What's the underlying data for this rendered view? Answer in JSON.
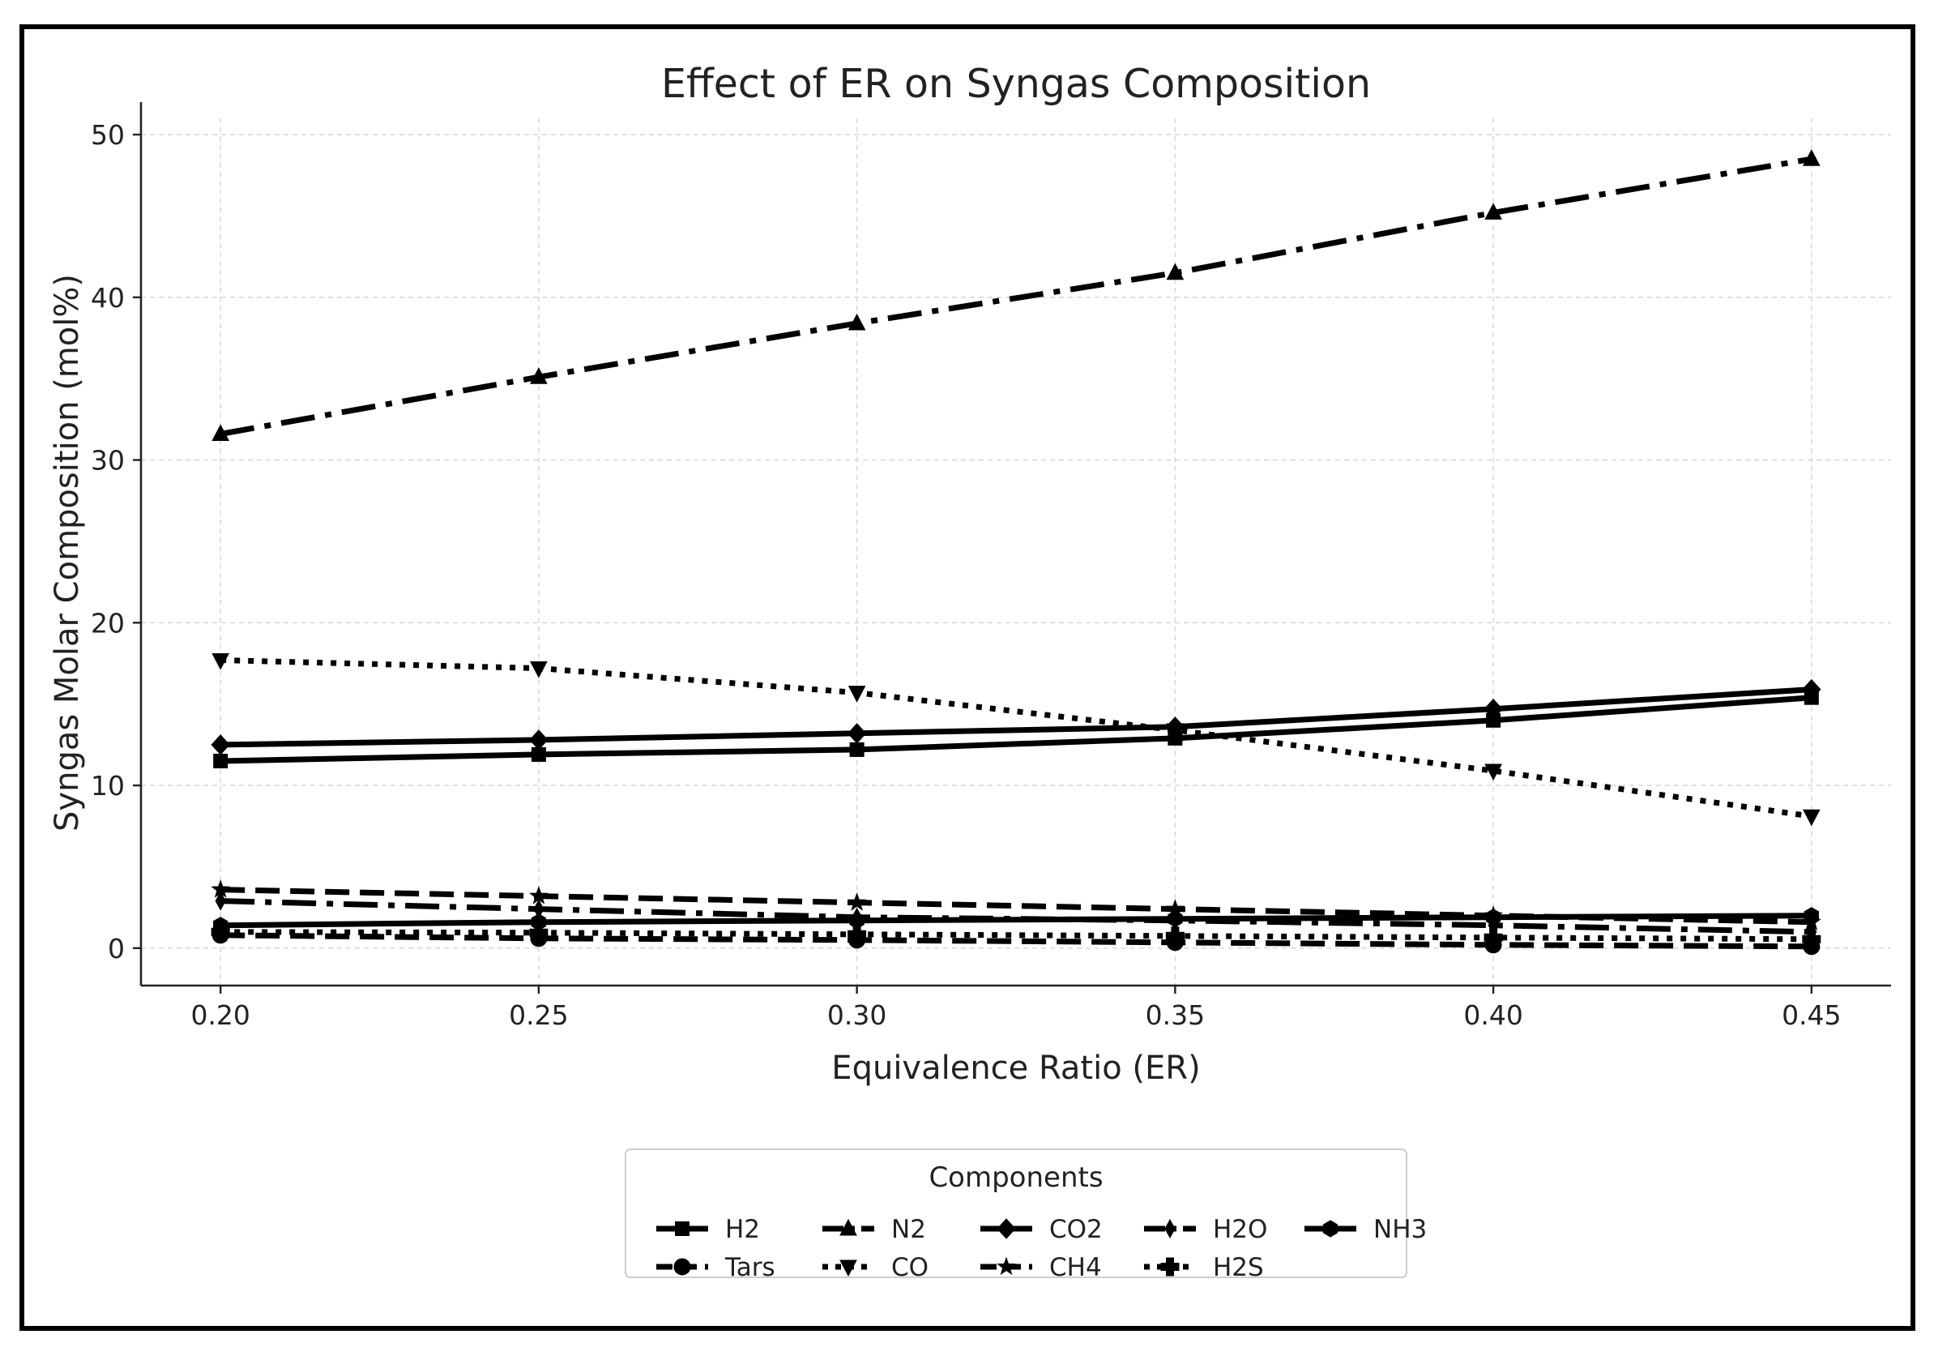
{
  "chart_data": {
    "type": "line",
    "title": "Effect of ER on Syngas Composition",
    "xlabel": "Equivalence Ratio (ER)",
    "ylabel": "Syngas Molar Composition (mol%)",
    "x": [
      0.2,
      0.25,
      0.3,
      0.35,
      0.4,
      0.45
    ],
    "x_tick_labels": [
      "0.20",
      "0.25",
      "0.30",
      "0.35",
      "0.40",
      "0.45"
    ],
    "xlim": [
      0.1875,
      0.4625
    ],
    "y_ticks": [
      0,
      10,
      20,
      30,
      40,
      50
    ],
    "y_tick_labels": [
      "0",
      "10",
      "20",
      "30",
      "40",
      "50"
    ],
    "ylim": [
      -2.3,
      51
    ],
    "grid": true,
    "legend": {
      "title": "Components",
      "position": "bottom-center",
      "columns": 5
    },
    "series": [
      {
        "name": "H2",
        "marker": "square",
        "linestyle": "solid",
        "values": [
          11.5,
          11.9,
          12.2,
          12.9,
          14.0,
          15.4
        ]
      },
      {
        "name": "N2",
        "marker": "triangle-up",
        "linestyle": "dashdot",
        "values": [
          31.6,
          35.1,
          38.4,
          41.5,
          45.2,
          48.5
        ]
      },
      {
        "name": "CO2",
        "marker": "diamond",
        "linestyle": "solid",
        "values": [
          12.5,
          12.8,
          13.2,
          13.6,
          14.7,
          15.9
        ]
      },
      {
        "name": "H2O",
        "marker": "thin-diamond",
        "linestyle": "dashdot",
        "values": [
          2.9,
          2.4,
          1.9,
          1.7,
          1.4,
          1.0
        ]
      },
      {
        "name": "NH3",
        "marker": "hexagon",
        "linestyle": "solid",
        "values": [
          1.4,
          1.6,
          1.7,
          1.8,
          1.9,
          2.0
        ]
      },
      {
        "name": "Tars",
        "marker": "circle",
        "linestyle": "dashed",
        "values": [
          0.8,
          0.6,
          0.5,
          0.35,
          0.2,
          0.1
        ]
      },
      {
        "name": "CO",
        "marker": "triangle-down",
        "linestyle": "dotted",
        "values": [
          17.7,
          17.2,
          15.7,
          13.4,
          10.9,
          8.1
        ]
      },
      {
        "name": "CH4",
        "marker": "star",
        "linestyle": "dashed",
        "values": [
          3.6,
          3.2,
          2.8,
          2.4,
          2.0,
          1.6
        ]
      },
      {
        "name": "H2S",
        "marker": "plus",
        "linestyle": "dotted",
        "values": [
          1.0,
          0.95,
          0.85,
          0.75,
          0.65,
          0.55
        ]
      }
    ]
  },
  "colors": {
    "line": "#000000",
    "grid": "#d9d9d9",
    "text": "#222222",
    "legend_border": "#cccccc"
  }
}
